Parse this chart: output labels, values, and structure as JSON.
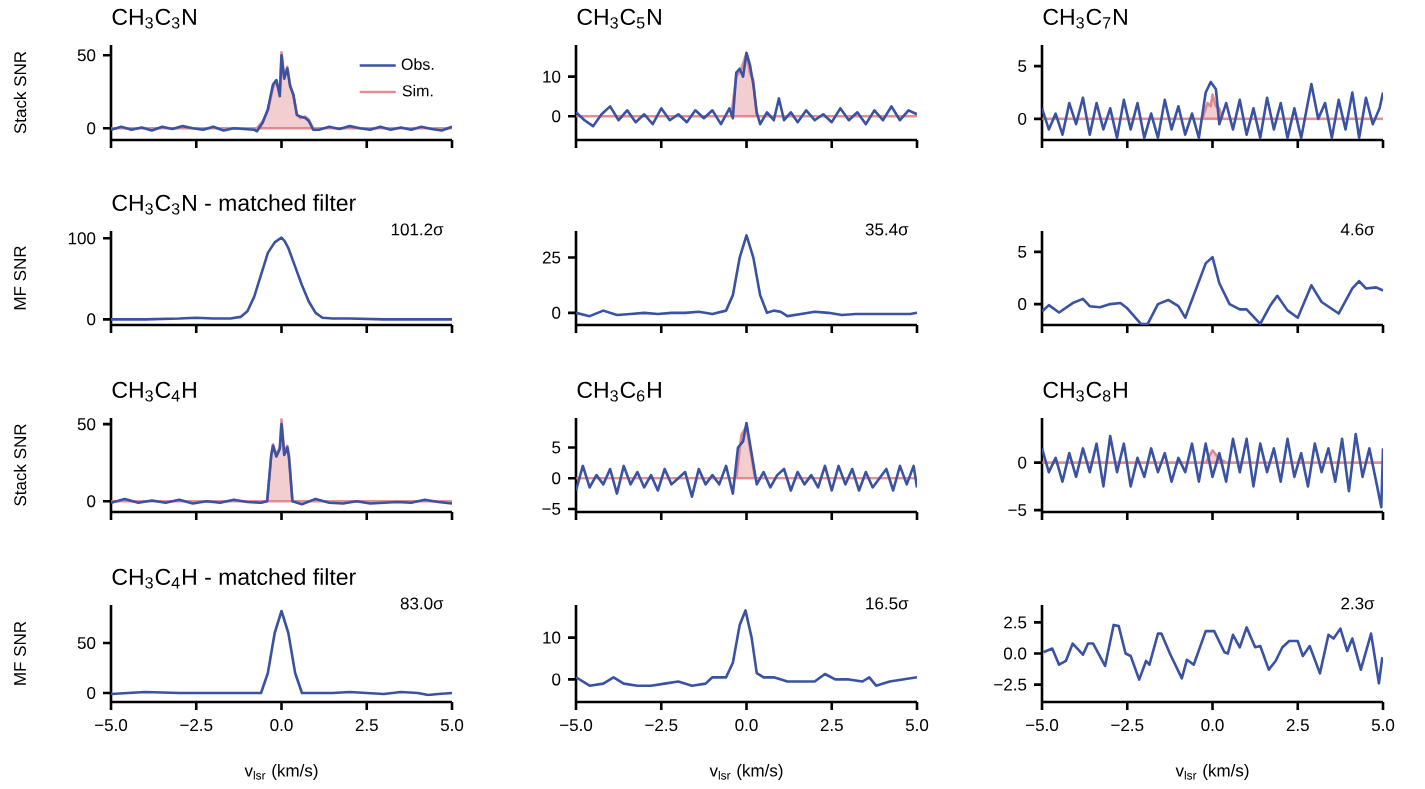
{
  "chart_data": [
    {
      "type": "line",
      "title": "CH$_{3}$C$_{3}$N",
      "ylabel": "Stack SNR",
      "xlim": [
        -5,
        5
      ],
      "ylim": [
        -8,
        57
      ],
      "yticks": [
        0,
        50
      ],
      "tick_labels": "y",
      "legend": "top right",
      "xticks": [
        {
          "value": -5,
          "label": null
        },
        {
          "value": -2.5,
          "label": null
        },
        {
          "value": 0,
          "label": null
        },
        {
          "value": 2.5,
          "label": null
        },
        {
          "value": 5,
          "label": null
        }
      ],
      "series": [
        {
          "name": "Obs.",
          "type": "line",
          "color": "#3a52a3",
          "x": [
            -5,
            -4.7,
            -4.4,
            -4.1,
            -3.8,
            -3.5,
            -3.2,
            -2.9,
            -2.6,
            -2.3,
            -2.0,
            -1.7,
            -1.4,
            -1.1,
            -0.8,
            -0.72,
            -0.55,
            -0.4,
            -0.25,
            -0.15,
            -0.05,
            0,
            0.08,
            0.17,
            0.25,
            0.35,
            0.45,
            0.55,
            0.7,
            0.8,
            0.93,
            1.1,
            1.4,
            1.7,
            2.0,
            2.3,
            2.6,
            2.9,
            3.2,
            3.5,
            3.8,
            4.1,
            4.4,
            4.7,
            5
          ],
          "values": [
            -1,
            1,
            -1,
            0.5,
            -1.5,
            1,
            -0.5,
            1.5,
            0,
            -1,
            1,
            -1.5,
            0,
            -0.5,
            -1,
            -2,
            4,
            13,
            30,
            33,
            22,
            50,
            34,
            41,
            29,
            23,
            9,
            8,
            7,
            5,
            -1,
            -1,
            1,
            -0.5,
            1.5,
            0,
            -1,
            1,
            -1,
            0.5,
            -1,
            1,
            -0.5,
            -1.5,
            1
          ]
        },
        {
          "name": "Sim.",
          "type": "area",
          "color": "#d9737b",
          "x": [
            -5,
            -0.72,
            -0.55,
            -0.4,
            -0.25,
            -0.15,
            -0.05,
            0,
            0.08,
            0.17,
            0.25,
            0.35,
            0.45,
            0.55,
            0.7,
            0.8,
            0.93,
            5
          ],
          "values": [
            0,
            0,
            5,
            12,
            28,
            32,
            25,
            52,
            35,
            42,
            30,
            22,
            10,
            7,
            8,
            6,
            0,
            0
          ]
        }
      ]
    },
    {
      "type": "line",
      "title": "CH$_{3}$C$_{5}$N",
      "xlim": [
        -5,
        5
      ],
      "ylim": [
        -6,
        18
      ],
      "yticks": [
        0,
        10
      ],
      "tick_labels": "y",
      "xticks": [
        {
          "value": -5,
          "label": null
        },
        {
          "value": -2.5,
          "label": null
        },
        {
          "value": 0,
          "label": null
        },
        {
          "value": 2.5,
          "label": null
        },
        {
          "value": 5,
          "label": null
        }
      ],
      "series": [
        {
          "type": "line",
          "color": "#3a52a3",
          "x": [
            -5,
            -4.75,
            -4.5,
            -4.25,
            -4,
            -3.75,
            -3.5,
            -3.25,
            -3,
            -2.75,
            -2.5,
            -2.25,
            -2,
            -1.75,
            -1.5,
            -1.25,
            -1,
            -0.75,
            -0.5,
            -0.4,
            -0.3,
            -0.2,
            -0.1,
            0,
            0.1,
            0.2,
            0.3,
            0.4,
            0.6,
            0.8,
            0.95,
            1.1,
            1.3,
            1.5,
            1.75,
            2,
            2.25,
            2.5,
            2.75,
            3,
            3.25,
            3.5,
            3.75,
            4,
            4.25,
            4.5,
            4.75,
            5
          ],
          "values": [
            1,
            -1,
            -2.5,
            0.5,
            2.5,
            -1,
            1.5,
            -1.5,
            0.5,
            -2,
            2,
            -1,
            0.5,
            -1.5,
            1.5,
            -0.5,
            1.5,
            -2,
            2,
            -0.5,
            11,
            12,
            10,
            16,
            13,
            8,
            1,
            -2,
            1,
            -1,
            4.5,
            -1,
            1,
            -1.5,
            1.5,
            -1,
            0.5,
            -1.5,
            2,
            -1,
            1,
            -2,
            1.5,
            -1,
            2.5,
            -1,
            1.5,
            0.5
          ]
        },
        {
          "type": "area",
          "color": "#d9737b",
          "x": [
            -5,
            -0.45,
            -0.3,
            -0.15,
            0,
            0.1,
            0.2,
            0.3,
            5
          ],
          "values": [
            0,
            0,
            10,
            12,
            16,
            11,
            9,
            0,
            0
          ]
        }
      ]
    },
    {
      "type": "line",
      "title": "CH$_{3}$C$_{7}$N",
      "xlim": [
        -5,
        5
      ],
      "ylim": [
        -2,
        7
      ],
      "yticks": [
        0,
        5
      ],
      "tick_labels": "y",
      "xticks": [
        {
          "value": -5,
          "label": null
        },
        {
          "value": -2.5,
          "label": null
        },
        {
          "value": 0,
          "label": null
        },
        {
          "value": 2.5,
          "label": null
        },
        {
          "value": 5,
          "label": null
        }
      ],
      "series": [
        {
          "type": "line",
          "color": "#3a52a3",
          "x": [
            -5,
            -4.8,
            -4.6,
            -4.4,
            -4.2,
            -4,
            -3.8,
            -3.6,
            -3.4,
            -3.2,
            -3,
            -2.8,
            -2.6,
            -2.4,
            -2.2,
            -2,
            -1.8,
            -1.6,
            -1.4,
            -1.2,
            -1,
            -0.8,
            -0.6,
            -0.4,
            -0.2,
            -0.05,
            0.1,
            0.2,
            0.4,
            0.6,
            0.8,
            1,
            1.2,
            1.4,
            1.6,
            1.8,
            2,
            2.2,
            2.4,
            2.6,
            2.9,
            3.1,
            3.3,
            3.5,
            3.7,
            3.9,
            4.1,
            4.3,
            4.5,
            4.7,
            4.9,
            5
          ],
          "values": [
            1,
            -1,
            0.5,
            -1.5,
            1.5,
            -0.5,
            2,
            -1.5,
            1.5,
            -1,
            1,
            -1.8,
            1.8,
            -1,
            1.5,
            -1.8,
            0.5,
            -1.8,
            1.8,
            -1,
            1.2,
            -1.5,
            0.5,
            -1.8,
            2.5,
            3.5,
            2.8,
            -0.5,
            1.5,
            -1,
            1.8,
            -1.5,
            1,
            -1.8,
            2,
            -1,
            1.5,
            -1.8,
            1,
            -1.8,
            3.3,
            0,
            1.5,
            -1.8,
            1.8,
            -1,
            2.5,
            -1.8,
            2,
            -0.5,
            1,
            2.5
          ]
        },
        {
          "type": "area",
          "color": "#d9737b",
          "x": [
            -5,
            -0.3,
            -0.15,
            -0.05,
            0,
            0.1,
            0.2,
            0.3,
            5
          ],
          "values": [
            0,
            0,
            1.5,
            1.2,
            2.3,
            1.2,
            1.0,
            0,
            0
          ]
        }
      ]
    },
    {
      "type": "line",
      "title": "CH$_{3}$C$_{3}$N - matched filter",
      "ylabel": "MF SNR",
      "xlim": [
        -5,
        5
      ],
      "ylim": [
        -7,
        109
      ],
      "yticks": [
        0,
        100
      ],
      "tick_labels": "y",
      "annotations": [
        "101.2σ"
      ],
      "xticks": [
        {
          "value": -5,
          "label": null
        },
        {
          "value": -2.5,
          "label": null
        },
        {
          "value": 0,
          "label": null
        },
        {
          "value": 2.5,
          "label": null
        },
        {
          "value": 5,
          "label": null
        }
      ],
      "series": [
        {
          "type": "line",
          "color": "#3a52a3",
          "x": [
            -5,
            -4,
            -3,
            -2.5,
            -2,
            -1.5,
            -1.2,
            -1,
            -0.8,
            -0.6,
            -0.4,
            -0.2,
            -0.1,
            0,
            0.1,
            0.2,
            0.4,
            0.6,
            0.8,
            1.0,
            1.2,
            1.5,
            2,
            3,
            4,
            5
          ],
          "values": [
            0,
            0,
            1,
            2,
            1,
            1,
            3,
            10,
            28,
            55,
            82,
            95,
            98,
            101,
            96,
            88,
            65,
            42,
            22,
            8,
            2,
            1,
            1,
            0,
            0,
            0
          ]
        }
      ]
    },
    {
      "type": "line",
      "xlim": [
        -5,
        5
      ],
      "ylim": [
        -5.5,
        37
      ],
      "yticks": [
        0,
        25
      ],
      "tick_labels": "y",
      "annotations": [
        "35.4σ"
      ],
      "xticks": [
        {
          "value": -5,
          "label": null
        },
        {
          "value": -2.5,
          "label": null
        },
        {
          "value": 0,
          "label": null
        },
        {
          "value": 2.5,
          "label": null
        },
        {
          "value": 5,
          "label": null
        }
      ],
      "series": [
        {
          "type": "line",
          "color": "#3a52a3",
          "x": [
            -5,
            -4.6,
            -4.2,
            -3.8,
            -3.4,
            -3,
            -2.6,
            -2.2,
            -1.8,
            -1.4,
            -1,
            -0.6,
            -0.4,
            -0.2,
            0,
            0.2,
            0.4,
            0.6,
            0.8,
            1.0,
            1.2,
            1.6,
            2,
            2.4,
            2.8,
            3.2,
            3.6,
            4,
            4.4,
            4.8,
            5
          ],
          "values": [
            0,
            -1.5,
            1,
            -1,
            -0.5,
            0,
            -0.5,
            0,
            0,
            0.5,
            -0.5,
            1,
            8,
            25,
            35,
            25,
            8,
            0,
            1,
            0.5,
            -1.5,
            -0.5,
            0.5,
            0,
            -1,
            -0.5,
            -0.5,
            -0.5,
            -0.5,
            -0.5,
            0
          ]
        }
      ]
    },
    {
      "type": "line",
      "xlim": [
        -5,
        5
      ],
      "ylim": [
        -2,
        7
      ],
      "yticks": [
        0,
        5
      ],
      "tick_labels": "y",
      "annotations": [
        "4.6σ"
      ],
      "xticks": [
        {
          "value": -5,
          "label": null
        },
        {
          "value": -2.5,
          "label": null
        },
        {
          "value": 0,
          "label": null
        },
        {
          "value": 2.5,
          "label": null
        },
        {
          "value": 5,
          "label": null
        }
      ],
      "series": [
        {
          "type": "line",
          "color": "#3a52a3",
          "x": [
            -5,
            -4.8,
            -4.5,
            -4.1,
            -3.8,
            -3.6,
            -3.3,
            -3.0,
            -2.7,
            -2.5,
            -2.1,
            -1.9,
            -1.6,
            -1.3,
            -1.0,
            -0.8,
            -0.2,
            0,
            0.2,
            0.5,
            0.8,
            1.0,
            1.4,
            1.7,
            1.9,
            2.2,
            2.5,
            2.9,
            3.2,
            3.7,
            4.1,
            4.3,
            4.5,
            4.8,
            5
          ],
          "values": [
            -0.7,
            -0.1,
            -0.8,
            0.1,
            0.5,
            -0.2,
            -0.3,
            0,
            0.1,
            -0.4,
            -1.9,
            -1.9,
            0,
            0.4,
            -0.2,
            -1.3,
            3.9,
            4.5,
            2,
            0,
            -0.5,
            -0.5,
            -1.9,
            -0.1,
            0.8,
            -0.6,
            -1.3,
            1.8,
            0.2,
            -0.9,
            1.5,
            2.2,
            1.5,
            1.6,
            1.3
          ]
        }
      ]
    },
    {
      "type": "line",
      "title": "CH$_{3}$C$_{4}$H",
      "ylabel": "Stack SNR",
      "xlim": [
        -5,
        5
      ],
      "ylim": [
        -7,
        54
      ],
      "yticks": [
        0,
        50
      ],
      "tick_labels": "y",
      "xticks": [
        {
          "value": -5,
          "label": null
        },
        {
          "value": -2.5,
          "label": null
        },
        {
          "value": 0,
          "label": null
        },
        {
          "value": 2.5,
          "label": null
        },
        {
          "value": 5,
          "label": null
        }
      ],
      "series": [
        {
          "type": "line",
          "color": "#3a52a3",
          "x": [
            -5,
            -4.6,
            -4.2,
            -3.8,
            -3.4,
            -3,
            -2.6,
            -2.2,
            -1.8,
            -1.4,
            -1,
            -0.6,
            -0.42,
            -0.3,
            -0.25,
            -0.15,
            -0.05,
            0,
            0.08,
            0.17,
            0.22,
            0.32,
            0.6,
            1,
            1.4,
            1.8,
            2.2,
            2.6,
            3,
            3.4,
            3.8,
            4.2,
            4.6,
            5
          ],
          "values": [
            -1,
            1.5,
            -1,
            0.5,
            -1,
            1,
            -1.5,
            0,
            -1,
            1,
            -0.5,
            -1,
            0,
            30,
            36,
            29,
            34,
            50,
            30,
            35,
            28,
            0,
            -2,
            1.5,
            -1,
            -1.5,
            0,
            -1.5,
            -1,
            -0.5,
            -1,
            1,
            -0.5,
            -1.5
          ]
        },
        {
          "type": "area",
          "color": "#d9737b",
          "x": [
            -5,
            -0.42,
            -0.3,
            -0.25,
            -0.15,
            -0.05,
            0,
            0.08,
            0.17,
            0.22,
            0.32,
            5
          ],
          "values": [
            0,
            0,
            30,
            37,
            30,
            35,
            53,
            32,
            36,
            30,
            0,
            0
          ]
        }
      ]
    },
    {
      "type": "line",
      "title": "CH$_{3}$C$_{6}$H",
      "xlim": [
        -5,
        5
      ],
      "ylim": [
        -5.5,
        9.8
      ],
      "yticks": [
        {
          "value": -5,
          "label": "−5"
        },
        0,
        5
      ],
      "tick_labels": "y",
      "xticks": [
        {
          "value": -5,
          "label": null
        },
        {
          "value": -2.5,
          "label": null
        },
        {
          "value": 0,
          "label": null
        },
        {
          "value": 2.5,
          "label": null
        },
        {
          "value": 5,
          "label": null
        }
      ],
      "series": [
        {
          "type": "line",
          "color": "#3a52a3",
          "x": [
            -5,
            -4.8,
            -4.6,
            -4.4,
            -4.2,
            -4,
            -3.8,
            -3.6,
            -3.4,
            -3.2,
            -3,
            -2.8,
            -2.6,
            -2.4,
            -2.2,
            -2,
            -1.8,
            -1.6,
            -1.4,
            -1.2,
            -1,
            -0.8,
            -0.6,
            -0.4,
            -0.25,
            -0.1,
            0,
            0.15,
            0.3,
            0.5,
            0.7,
            0.9,
            1.1,
            1.3,
            1.5,
            1.7,
            1.9,
            2.1,
            2.3,
            2.5,
            2.7,
            2.9,
            3.1,
            3.3,
            3.5,
            3.7,
            3.9,
            4.1,
            4.3,
            4.5,
            4.7,
            4.9,
            5
          ],
          "values": [
            -2,
            2,
            -1.5,
            0.5,
            -1,
            1.5,
            -2.5,
            2,
            -1,
            1,
            -1.5,
            0.5,
            -2,
            1.5,
            -1,
            0,
            1,
            -3,
            1.5,
            -1,
            0.5,
            -1,
            2,
            -2.5,
            5,
            6,
            9,
            4,
            -1,
            1,
            -1.5,
            0.5,
            1.5,
            -2,
            1,
            -1,
            0.5,
            -1.5,
            2,
            -2,
            2,
            -1,
            1.5,
            -2,
            1,
            -1.5,
            0,
            1.5,
            -2,
            2,
            -1,
            2,
            -1.5
          ]
        },
        {
          "type": "area",
          "color": "#d9737b",
          "x": [
            -5,
            -0.3,
            -0.15,
            0,
            0.1,
            0.25,
            5
          ],
          "values": [
            0,
            0,
            7,
            8.5,
            5,
            0,
            0
          ]
        }
      ]
    },
    {
      "type": "line",
      "title": "CH$_{3}$C$_{8}$H",
      "xlim": [
        -5,
        5
      ],
      "ylim": [
        -5.2,
        4.7
      ],
      "yticks": [
        {
          "value": -5,
          "label": "−5"
        },
        0
      ],
      "tick_labels": "y",
      "xticks": [
        {
          "value": -5,
          "label": null
        },
        {
          "value": -2.5,
          "label": null
        },
        {
          "value": 0,
          "label": null
        },
        {
          "value": 2.5,
          "label": null
        },
        {
          "value": 5,
          "label": null
        }
      ],
      "series": [
        {
          "type": "line",
          "color": "#3a52a3",
          "x": [
            -5,
            -4.8,
            -4.6,
            -4.4,
            -4.2,
            -4,
            -3.8,
            -3.6,
            -3.4,
            -3.2,
            -3,
            -2.8,
            -2.6,
            -2.4,
            -2.2,
            -2,
            -1.8,
            -1.6,
            -1.4,
            -1.2,
            -1,
            -0.8,
            -0.6,
            -0.4,
            -0.2,
            0,
            0.2,
            0.4,
            0.6,
            0.8,
            1,
            1.2,
            1.4,
            1.6,
            1.8,
            2,
            2.2,
            2.4,
            2.6,
            2.8,
            3,
            3.2,
            3.4,
            3.6,
            3.8,
            4,
            4.2,
            4.4,
            4.6,
            4.8,
            4.95,
            5
          ],
          "values": [
            1.5,
            -1,
            0.5,
            -2,
            1,
            -1.5,
            1.5,
            -1,
            2,
            -2.5,
            2.8,
            -1,
            2,
            -2.5,
            0.5,
            -1.5,
            1.5,
            -1,
            1,
            -2,
            0.5,
            -1,
            2,
            -2,
            2,
            -1.5,
            1,
            -2,
            2.5,
            -1,
            2.5,
            -2.5,
            2,
            -1,
            1.5,
            -2,
            2.5,
            -1.5,
            1,
            -2.5,
            2,
            -1,
            1.5,
            -2,
            2.5,
            -3,
            3,
            -1.5,
            1.5,
            -2,
            -4.7,
            1.5
          ]
        },
        {
          "type": "area",
          "color": "#d9737b",
          "x": [
            -5,
            -0.2,
            0,
            0.2,
            0.4,
            5
          ],
          "values": [
            0,
            0,
            1.3,
            0.4,
            0,
            0
          ]
        }
      ]
    },
    {
      "type": "line",
      "title": "CH$_{3}$C$_{4}$H - matched filter",
      "ylabel": "MF SNR",
      "xlabel": "v$_{lsr}$ (km/s)",
      "xlim": [
        -5,
        5
      ],
      "ylim": [
        -9,
        88
      ],
      "yticks": [
        0,
        50
      ],
      "annotations": [
        "83.0σ"
      ],
      "xticks": [
        {
          "value": -5,
          "label": "−5.0"
        },
        {
          "value": -2.5,
          "label": "−2.5"
        },
        {
          "value": 0,
          "label": "0.0"
        },
        {
          "value": 2.5,
          "label": "2.5"
        },
        {
          "value": 5,
          "label": "5.0"
        }
      ],
      "series": [
        {
          "type": "line",
          "color": "#3a52a3",
          "x": [
            -5,
            -4,
            -3,
            -2,
            -1,
            -0.6,
            -0.4,
            -0.2,
            0,
            0.2,
            0.4,
            0.6,
            0.8,
            1.5,
            2,
            2.5,
            3,
            3.5,
            4,
            4.3,
            4.6,
            5
          ],
          "values": [
            -1,
            1,
            0,
            0,
            0,
            0,
            20,
            60,
            82,
            60,
            20,
            0,
            0,
            0,
            1,
            0,
            -1,
            1,
            0,
            -2,
            -1,
            0
          ]
        }
      ]
    },
    {
      "type": "line",
      "xlabel": "v$_{lsr}$ (km/s)",
      "xlim": [
        -5,
        5
      ],
      "ylim": [
        -5.4,
        17.8
      ],
      "yticks": [
        0,
        10
      ],
      "annotations": [
        "16.5σ"
      ],
      "xticks": [
        {
          "value": -5,
          "label": "−5.0"
        },
        {
          "value": -2.5,
          "label": "−2.5"
        },
        {
          "value": 0,
          "label": "0.0"
        },
        {
          "value": 2.5,
          "label": "2.5"
        },
        {
          "value": 5,
          "label": "5.0"
        }
      ],
      "series": [
        {
          "type": "line",
          "color": "#3a52a3",
          "x": [
            -5,
            -4.6,
            -4.2,
            -3.9,
            -3.6,
            -3.2,
            -2.8,
            -2.4,
            -2,
            -1.6,
            -1.2,
            -1,
            -0.6,
            -0.4,
            -0.2,
            -0.03,
            0.15,
            0.3,
            0.5,
            0.8,
            1.2,
            1.6,
            2,
            2.3,
            2.6,
            3,
            3.4,
            3.6,
            3.8,
            4.2,
            4.6,
            5
          ],
          "values": [
            0.5,
            -1.5,
            -1,
            0.5,
            -1,
            -1.5,
            -1.5,
            -1,
            -0.5,
            -1.5,
            -1,
            0.5,
            0.5,
            4,
            13,
            16.5,
            10,
            1.5,
            0.5,
            0.5,
            -0.5,
            -0.5,
            -0.5,
            1.3,
            0,
            0,
            -0.5,
            0.5,
            -1.5,
            -0.5,
            0,
            0.5
          ]
        }
      ]
    },
    {
      "type": "line",
      "xlabel": "v$_{lsr}$ (km/s)",
      "xlim": [
        -5,
        5
      ],
      "ylim": [
        -3.9,
        3.9
      ],
      "yticks": [
        {
          "value": -2.5,
          "label": "−2.5"
        },
        {
          "value": 0,
          "label": "0.0"
        },
        2.5
      ],
      "annotations": [
        "2.3σ"
      ],
      "xticks": [
        {
          "value": -5,
          "label": "−5.0"
        },
        {
          "value": -2.5,
          "label": "−2.5"
        },
        {
          "value": 0,
          "label": "0.0"
        },
        {
          "value": 2.5,
          "label": "2.5"
        },
        {
          "value": 5,
          "label": "5.0"
        }
      ],
      "series": [
        {
          "type": "line",
          "color": "#3a52a3",
          "x": [
            -4.96,
            -4.7,
            -4.5,
            -4.3,
            -4.1,
            -3.8,
            -3.65,
            -3.5,
            -3.15,
            -2.9,
            -2.75,
            -2.55,
            -2.4,
            -2.15,
            -1.95,
            -1.85,
            -1.6,
            -1.5,
            -1.25,
            -0.9,
            -0.75,
            -0.55,
            -0.2,
            0.05,
            0.35,
            0.45,
            0.6,
            0.8,
            1.0,
            1.25,
            1.4,
            1.65,
            1.85,
            2.05,
            2.25,
            2.5,
            2.65,
            2.85,
            3.15,
            3.4,
            3.55,
            3.75,
            3.95,
            4.1,
            4.35,
            4.65,
            4.88,
            4.98
          ],
          "values": [
            0.1,
            0.4,
            -0.9,
            -0.6,
            0.8,
            -0.1,
            0.8,
            0.8,
            -1.0,
            2.3,
            2.2,
            0,
            -0.2,
            -2.1,
            -0.6,
            -0.9,
            1.6,
            1.6,
            0,
            -2.0,
            -0.5,
            -0.9,
            1.8,
            1.8,
            0.1,
            0,
            1.5,
            0.5,
            2.1,
            0.5,
            0.6,
            -1.3,
            -0.6,
            0.5,
            1.0,
            1.0,
            -0.2,
            0.6,
            -1.6,
            1.5,
            1.2,
            2.0,
            0.2,
            1.2,
            -1.3,
            1.6,
            -2.4,
            -0.3
          ]
        }
      ]
    }
  ]
}
